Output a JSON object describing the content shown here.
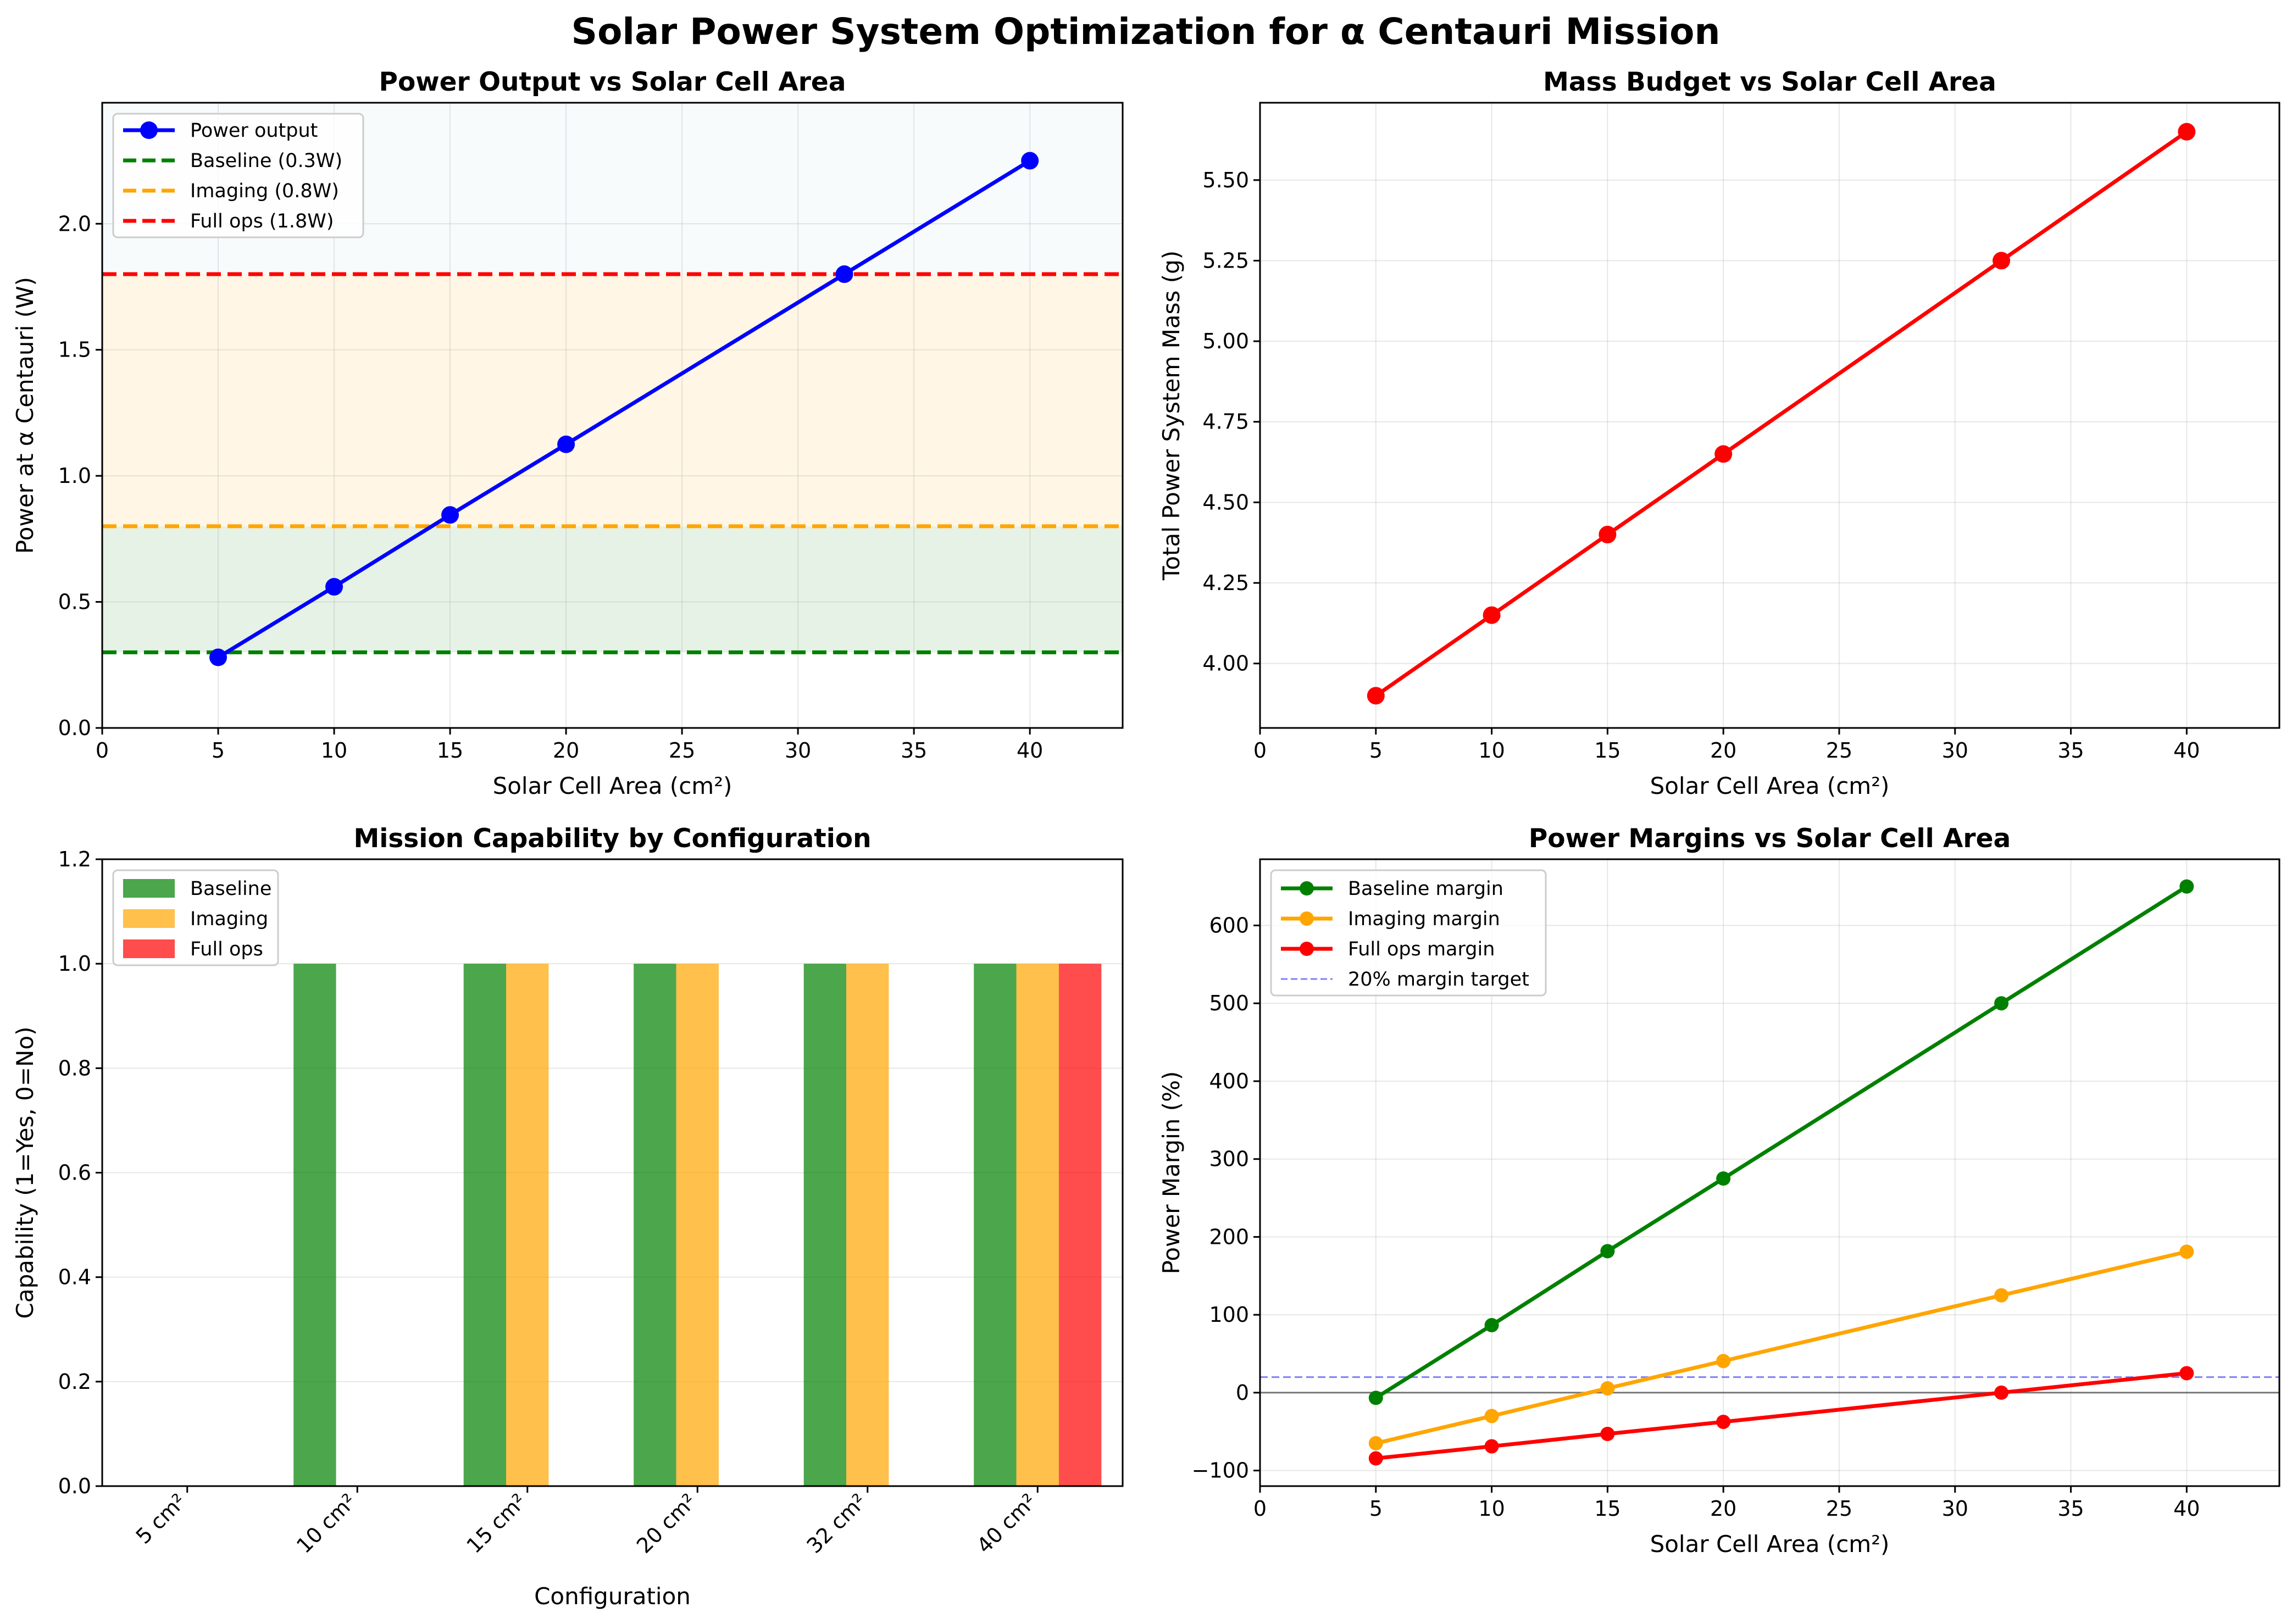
{
  "figure": {
    "title": "Solar Power System Optimization for α Centauri Mission"
  },
  "chart_data": [
    {
      "type": "line",
      "title": "Power Output vs Solar Cell Area",
      "xlabel": "Solar Cell Area (cm²)",
      "ylabel": "Power at α Centauri (W)",
      "xlim": [
        0,
        44
      ],
      "ylim": [
        0,
        2.48
      ],
      "xticks": [
        0,
        5,
        10,
        15,
        20,
        25,
        30,
        35,
        40
      ],
      "yticks": [
        "0.0",
        "0.5",
        "1.0",
        "1.5",
        "2.0"
      ],
      "grid": true,
      "legend_position": "upper left",
      "x": [
        5,
        10,
        15,
        20,
        32,
        40
      ],
      "series": [
        {
          "name": "Power output",
          "values": [
            0.28,
            0.56,
            0.845,
            1.125,
            1.8,
            2.25
          ],
          "color": "#0000ff",
          "style": "solid",
          "marker": "circle"
        }
      ],
      "reference_lines": [
        {
          "name": "Baseline (0.3W)",
          "y": 0.3,
          "color": "#008000",
          "style": "dashed"
        },
        {
          "name": "Imaging (0.8W)",
          "y": 0.8,
          "color": "#ffa500",
          "style": "dashed"
        },
        {
          "name": "Full ops (1.8W)",
          "y": 1.8,
          "color": "#ff0000",
          "style": "dashed"
        }
      ],
      "bands": [
        {
          "from": 0.3,
          "to": 0.8,
          "color": "#008000",
          "opacity": 0.1
        },
        {
          "from": 0.8,
          "to": 1.8,
          "color": "#ffa500",
          "opacity": 0.1
        },
        {
          "from": 1.8,
          "to": 2.48,
          "color": "#add8e6",
          "opacity": 0.1
        }
      ]
    },
    {
      "type": "line",
      "title": "Mass Budget vs Solar Cell Area",
      "xlabel": "Solar Cell Area (cm²)",
      "ylabel": "Total Power System Mass (g)",
      "xlim": [
        0,
        44
      ],
      "ylim": [
        3.8,
        5.74
      ],
      "xticks": [
        0,
        5,
        10,
        15,
        20,
        25,
        30,
        35,
        40
      ],
      "yticks": [
        "4.00",
        "4.25",
        "4.50",
        "4.75",
        "5.00",
        "5.25",
        "5.50"
      ],
      "grid": true,
      "x": [
        5,
        10,
        15,
        20,
        32,
        40
      ],
      "series": [
        {
          "values": [
            3.9,
            4.15,
            4.4,
            4.65,
            5.25,
            5.65
          ],
          "color": "#ff0000",
          "style": "solid",
          "marker": "circle"
        }
      ]
    },
    {
      "type": "bar",
      "title": "Mission Capability by Configuration",
      "xlabel": "Configuration",
      "ylabel": "Capability (1=Yes, 0=No)",
      "ylim": [
        0,
        1.2
      ],
      "yticks": [
        "0.0",
        "0.2",
        "0.4",
        "0.6",
        "0.8",
        "1.0",
        "1.2"
      ],
      "grid": true,
      "legend_position": "upper left",
      "categories": [
        "5 cm²",
        "10 cm²",
        "15 cm²",
        "20 cm²",
        "32 cm²",
        "40 cm²"
      ],
      "series": [
        {
          "name": "Baseline",
          "values": [
            0,
            1,
            1,
            1,
            1,
            1
          ],
          "color": "#008000",
          "opacity": 0.7
        },
        {
          "name": "Imaging",
          "values": [
            0,
            0,
            1,
            1,
            1,
            1
          ],
          "color": "#ffa500",
          "opacity": 0.7
        },
        {
          "name": "Full ops",
          "values": [
            0,
            0,
            0,
            0,
            0,
            1
          ],
          "color": "#ff0000",
          "opacity": 0.7
        }
      ]
    },
    {
      "type": "line",
      "title": "Power Margins vs Solar Cell Area",
      "xlabel": "Solar Cell Area (cm²)",
      "ylabel": "Power Margin (%)",
      "xlim": [
        0,
        44
      ],
      "ylim": [
        -120,
        685
      ],
      "xticks": [
        0,
        5,
        10,
        15,
        20,
        25,
        30,
        35,
        40
      ],
      "yticks": [
        "−100",
        "0",
        "100",
        "200",
        "300",
        "400",
        "500",
        "600"
      ],
      "grid": true,
      "legend_position": "upper left",
      "x": [
        5,
        10,
        15,
        20,
        32,
        40
      ],
      "series": [
        {
          "name": "Baseline margin",
          "values": [
            -6.7,
            86.7,
            181.7,
            275,
            500,
            650
          ],
          "color": "#008000",
          "style": "solid",
          "marker": "circle"
        },
        {
          "name": "Imaging margin",
          "values": [
            -65,
            -30,
            5.6,
            40.6,
            125,
            181
          ],
          "color": "#ffa500",
          "style": "solid",
          "marker": "circle"
        },
        {
          "name": "Full ops margin",
          "values": [
            -84.4,
            -68.9,
            -53,
            -37.5,
            0,
            25
          ],
          "color": "#ff0000",
          "style": "solid",
          "marker": "circle"
        }
      ],
      "reference_lines": [
        {
          "name": "20% margin target",
          "y": 20,
          "color": "#0000ff",
          "style": "dashed",
          "opacity": 0.5
        },
        {
          "y": 0,
          "color": "#000000",
          "style": "solid",
          "opacity": 0.5
        }
      ]
    }
  ]
}
